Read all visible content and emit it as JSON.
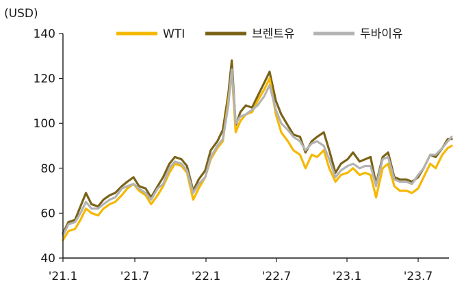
{
  "chart_data": {
    "type": "line",
    "unit_label": "(USD)",
    "ylim": [
      40,
      140
    ],
    "y_ticks": [
      40,
      60,
      80,
      100,
      120,
      140
    ],
    "x_ticks": [
      "'21.1",
      "'21.7",
      "'22.1",
      "'22.7",
      "'23.1",
      "'23.7"
    ],
    "x_period": [
      "2021-01",
      "2023-09"
    ],
    "grid": false,
    "legend_position": "top",
    "series": [
      {
        "name": "WTI",
        "color": "#f5b800",
        "values": [
          {
            "x": "2021-01",
            "y": 48
          },
          {
            "x": "2021-01-15",
            "y": 52
          },
          {
            "x": "2021-02",
            "y": 53
          },
          {
            "x": "2021-02-15",
            "y": 57
          },
          {
            "x": "2021-03",
            "y": 62
          },
          {
            "x": "2021-03-15",
            "y": 60
          },
          {
            "x": "2021-04",
            "y": 59
          },
          {
            "x": "2021-04-15",
            "y": 62
          },
          {
            "x": "2021-05",
            "y": 64
          },
          {
            "x": "2021-05-15",
            "y": 65
          },
          {
            "x": "2021-06",
            "y": 68
          },
          {
            "x": "2021-06-15",
            "y": 71
          },
          {
            "x": "2021-07",
            "y": 73
          },
          {
            "x": "2021-07-15",
            "y": 70
          },
          {
            "x": "2021-08",
            "y": 68
          },
          {
            "x": "2021-08-15",
            "y": 64
          },
          {
            "x": "2021-09",
            "y": 68
          },
          {
            "x": "2021-09-15",
            "y": 72
          },
          {
            "x": "2021-10",
            "y": 78
          },
          {
            "x": "2021-10-15",
            "y": 82
          },
          {
            "x": "2021-11",
            "y": 81
          },
          {
            "x": "2021-11-15",
            "y": 78
          },
          {
            "x": "2021-12",
            "y": 66
          },
          {
            "x": "2021-12-15",
            "y": 71
          },
          {
            "x": "2022-01",
            "y": 76
          },
          {
            "x": "2022-01-15",
            "y": 84
          },
          {
            "x": "2022-02",
            "y": 89
          },
          {
            "x": "2022-02-15",
            "y": 92
          },
          {
            "x": "2022-03",
            "y": 110
          },
          {
            "x": "2022-03-10",
            "y": 123
          },
          {
            "x": "2022-03-20",
            "y": 96
          },
          {
            "x": "2022-04",
            "y": 101
          },
          {
            "x": "2022-04-15",
            "y": 104
          },
          {
            "x": "2022-05",
            "y": 105
          },
          {
            "x": "2022-05-15",
            "y": 110
          },
          {
            "x": "2022-06",
            "y": 115
          },
          {
            "x": "2022-06-15",
            "y": 120
          },
          {
            "x": "2022-07",
            "y": 104
          },
          {
            "x": "2022-07-15",
            "y": 96
          },
          {
            "x": "2022-08",
            "y": 92
          },
          {
            "x": "2022-08-15",
            "y": 88
          },
          {
            "x": "2022-09",
            "y": 86
          },
          {
            "x": "2022-09-15",
            "y": 80
          },
          {
            "x": "2022-10",
            "y": 86
          },
          {
            "x": "2022-10-15",
            "y": 85
          },
          {
            "x": "2022-11",
            "y": 88
          },
          {
            "x": "2022-11-15",
            "y": 80
          },
          {
            "x": "2022-12",
            "y": 74
          },
          {
            "x": "2022-12-15",
            "y": 77
          },
          {
            "x": "2023-01",
            "y": 78
          },
          {
            "x": "2023-01-15",
            "y": 80
          },
          {
            "x": "2023-02",
            "y": 77
          },
          {
            "x": "2023-02-15",
            "y": 78
          },
          {
            "x": "2023-03",
            "y": 77
          },
          {
            "x": "2023-03-15",
            "y": 67
          },
          {
            "x": "2023-04",
            "y": 80
          },
          {
            "x": "2023-04-15",
            "y": 82
          },
          {
            "x": "2023-05",
            "y": 72
          },
          {
            "x": "2023-05-15",
            "y": 70
          },
          {
            "x": "2023-06",
            "y": 70
          },
          {
            "x": "2023-06-15",
            "y": 69
          },
          {
            "x": "2023-07",
            "y": 71
          },
          {
            "x": "2023-07-15",
            "y": 76
          },
          {
            "x": "2023-08",
            "y": 82
          },
          {
            "x": "2023-08-15",
            "y": 80
          },
          {
            "x": "2023-09",
            "y": 86
          },
          {
            "x": "2023-09-15",
            "y": 89
          },
          {
            "x": "2023-09-25",
            "y": 90
          }
        ]
      },
      {
        "name": "브렌트유",
        "color": "#7a6318",
        "values": [
          {
            "x": "2021-01",
            "y": 51
          },
          {
            "x": "2021-01-15",
            "y": 56
          },
          {
            "x": "2021-02",
            "y": 57
          },
          {
            "x": "2021-02-15",
            "y": 63
          },
          {
            "x": "2021-03",
            "y": 69
          },
          {
            "x": "2021-03-15",
            "y": 64
          },
          {
            "x": "2021-04",
            "y": 63
          },
          {
            "x": "2021-04-15",
            "y": 66
          },
          {
            "x": "2021-05",
            "y": 68
          },
          {
            "x": "2021-05-15",
            "y": 69
          },
          {
            "x": "2021-06",
            "y": 72
          },
          {
            "x": "2021-06-15",
            "y": 74
          },
          {
            "x": "2021-07",
            "y": 76
          },
          {
            "x": "2021-07-15",
            "y": 72
          },
          {
            "x": "2021-08",
            "y": 71
          },
          {
            "x": "2021-08-15",
            "y": 67
          },
          {
            "x": "2021-09",
            "y": 72
          },
          {
            "x": "2021-09-15",
            "y": 76
          },
          {
            "x": "2021-10",
            "y": 82
          },
          {
            "x": "2021-10-15",
            "y": 85
          },
          {
            "x": "2021-11",
            "y": 84
          },
          {
            "x": "2021-11-15",
            "y": 81
          },
          {
            "x": "2021-12",
            "y": 70
          },
          {
            "x": "2021-12-15",
            "y": 75
          },
          {
            "x": "2022-01",
            "y": 79
          },
          {
            "x": "2022-01-15",
            "y": 88
          },
          {
            "x": "2022-02",
            "y": 92
          },
          {
            "x": "2022-02-15",
            "y": 97
          },
          {
            "x": "2022-03",
            "y": 113
          },
          {
            "x": "2022-03-10",
            "y": 128
          },
          {
            "x": "2022-03-20",
            "y": 99
          },
          {
            "x": "2022-04",
            "y": 105
          },
          {
            "x": "2022-04-15",
            "y": 108
          },
          {
            "x": "2022-05",
            "y": 107
          },
          {
            "x": "2022-05-15",
            "y": 112
          },
          {
            "x": "2022-06",
            "y": 118
          },
          {
            "x": "2022-06-15",
            "y": 123
          },
          {
            "x": "2022-07",
            "y": 110
          },
          {
            "x": "2022-07-15",
            "y": 104
          },
          {
            "x": "2022-08",
            "y": 99
          },
          {
            "x": "2022-08-15",
            "y": 95
          },
          {
            "x": "2022-09",
            "y": 94
          },
          {
            "x": "2022-09-15",
            "y": 87
          },
          {
            "x": "2022-10",
            "y": 92
          },
          {
            "x": "2022-10-15",
            "y": 94
          },
          {
            "x": "2022-11",
            "y": 96
          },
          {
            "x": "2022-11-15",
            "y": 88
          },
          {
            "x": "2022-12",
            "y": 78
          },
          {
            "x": "2022-12-15",
            "y": 82
          },
          {
            "x": "2023-01",
            "y": 84
          },
          {
            "x": "2023-01-15",
            "y": 87
          },
          {
            "x": "2023-02",
            "y": 83
          },
          {
            "x": "2023-02-15",
            "y": 84
          },
          {
            "x": "2023-03",
            "y": 85
          },
          {
            "x": "2023-03-15",
            "y": 73
          },
          {
            "x": "2023-04",
            "y": 85
          },
          {
            "x": "2023-04-15",
            "y": 87
          },
          {
            "x": "2023-05",
            "y": 76
          },
          {
            "x": "2023-05-15",
            "y": 75
          },
          {
            "x": "2023-06",
            "y": 75
          },
          {
            "x": "2023-06-15",
            "y": 74
          },
          {
            "x": "2023-07",
            "y": 76
          },
          {
            "x": "2023-07-15",
            "y": 80
          },
          {
            "x": "2023-08",
            "y": 86
          },
          {
            "x": "2023-08-15",
            "y": 85
          },
          {
            "x": "2023-09",
            "y": 89
          },
          {
            "x": "2023-09-15",
            "y": 93
          },
          {
            "x": "2023-09-25",
            "y": 93
          }
        ]
      },
      {
        "name": "두바이유",
        "color": "#b3b3b3",
        "values": [
          {
            "x": "2021-01",
            "y": 50
          },
          {
            "x": "2021-01-15",
            "y": 55
          },
          {
            "x": "2021-02",
            "y": 56
          },
          {
            "x": "2021-02-15",
            "y": 60
          },
          {
            "x": "2021-03",
            "y": 65
          },
          {
            "x": "2021-03-15",
            "y": 62
          },
          {
            "x": "2021-04",
            "y": 62
          },
          {
            "x": "2021-04-15",
            "y": 64
          },
          {
            "x": "2021-05",
            "y": 66
          },
          {
            "x": "2021-05-15",
            "y": 67
          },
          {
            "x": "2021-06",
            "y": 71
          },
          {
            "x": "2021-06-15",
            "y": 72
          },
          {
            "x": "2021-07",
            "y": 73
          },
          {
            "x": "2021-07-15",
            "y": 71
          },
          {
            "x": "2021-08",
            "y": 69
          },
          {
            "x": "2021-08-15",
            "y": 66
          },
          {
            "x": "2021-09",
            "y": 71
          },
          {
            "x": "2021-09-15",
            "y": 73
          },
          {
            "x": "2021-10",
            "y": 80
          },
          {
            "x": "2021-10-15",
            "y": 83
          },
          {
            "x": "2021-11",
            "y": 82
          },
          {
            "x": "2021-11-15",
            "y": 79
          },
          {
            "x": "2021-12",
            "y": 69
          },
          {
            "x": "2021-12-15",
            "y": 73
          },
          {
            "x": "2022-01",
            "y": 76
          },
          {
            "x": "2022-01-15",
            "y": 85
          },
          {
            "x": "2022-02",
            "y": 90
          },
          {
            "x": "2022-02-15",
            "y": 93
          },
          {
            "x": "2022-03",
            "y": 108
          },
          {
            "x": "2022-03-10",
            "y": 124
          },
          {
            "x": "2022-03-20",
            "y": 100
          },
          {
            "x": "2022-04",
            "y": 103
          },
          {
            "x": "2022-04-15",
            "y": 104
          },
          {
            "x": "2022-05",
            "y": 106
          },
          {
            "x": "2022-05-15",
            "y": 108
          },
          {
            "x": "2022-06",
            "y": 112
          },
          {
            "x": "2022-06-15",
            "y": 117
          },
          {
            "x": "2022-07",
            "y": 106
          },
          {
            "x": "2022-07-15",
            "y": 100
          },
          {
            "x": "2022-08",
            "y": 97
          },
          {
            "x": "2022-08-15",
            "y": 94
          },
          {
            "x": "2022-09",
            "y": 92
          },
          {
            "x": "2022-09-15",
            "y": 88
          },
          {
            "x": "2022-10",
            "y": 91
          },
          {
            "x": "2022-10-15",
            "y": 92
          },
          {
            "x": "2022-11",
            "y": 90
          },
          {
            "x": "2022-11-15",
            "y": 84
          },
          {
            "x": "2022-12",
            "y": 76
          },
          {
            "x": "2022-12-15",
            "y": 79
          },
          {
            "x": "2023-01",
            "y": 81
          },
          {
            "x": "2023-01-15",
            "y": 82
          },
          {
            "x": "2023-02",
            "y": 80
          },
          {
            "x": "2023-02-15",
            "y": 81
          },
          {
            "x": "2023-03",
            "y": 81
          },
          {
            "x": "2023-03-15",
            "y": 72
          },
          {
            "x": "2023-04",
            "y": 84
          },
          {
            "x": "2023-04-15",
            "y": 85
          },
          {
            "x": "2023-05",
            "y": 75
          },
          {
            "x": "2023-05-15",
            "y": 74
          },
          {
            "x": "2023-06",
            "y": 74
          },
          {
            "x": "2023-06-15",
            "y": 73
          },
          {
            "x": "2023-07",
            "y": 77
          },
          {
            "x": "2023-07-15",
            "y": 80
          },
          {
            "x": "2023-08",
            "y": 86
          },
          {
            "x": "2023-08-15",
            "y": 86
          },
          {
            "x": "2023-09",
            "y": 89
          },
          {
            "x": "2023-09-15",
            "y": 92
          },
          {
            "x": "2023-09-25",
            "y": 94
          }
        ]
      }
    ]
  }
}
